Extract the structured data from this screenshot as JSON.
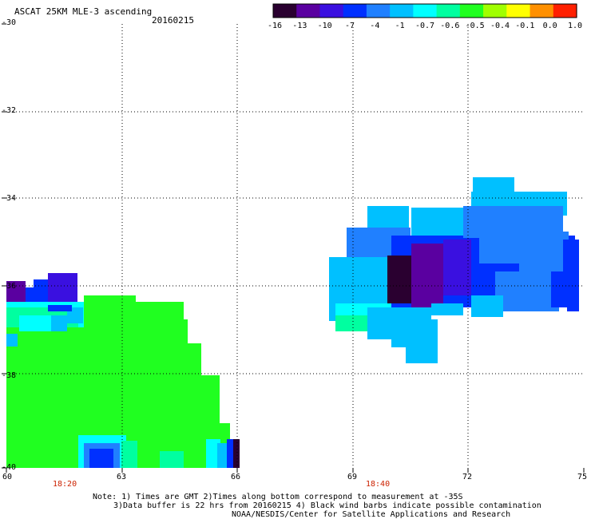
{
  "header": {
    "title": "ASCAT 25KM MLE-3 ascending",
    "date": "20160215"
  },
  "colorbar": {
    "labels": [
      "-16",
      "-13",
      "-10",
      "-7",
      "-4",
      "-1",
      "-0.7",
      "-0.6",
      "-0.5",
      "-0.4",
      "-0.1",
      "0.0",
      "1.0"
    ],
    "colors": [
      "#2a0030",
      "#5a00a0",
      "#3a10e0",
      "#0030ff",
      "#2080ff",
      "#00c0ff",
      "#00ffff",
      "#00ffa0",
      "#20ff20",
      "#a0ff00",
      "#ffff00",
      "#ff9000",
      "#ff2000"
    ]
  },
  "axes": {
    "x_ticks": [
      "60",
      "63",
      "66",
      "69",
      "72",
      "75"
    ],
    "y_ticks": [
      "-30",
      "-32",
      "-34",
      "-36",
      "-38",
      "-40"
    ]
  },
  "times": [
    "18:20",
    "18:40"
  ],
  "notes": [
    "Note: 1) Times are GMT 2)Times along bottom correspond to measurement at -35S",
    "3)Data buffer is 22 hrs from 20160215 4) Black wind barbs indicate possible contamination",
    "NOAA/NESDIS/Center for Satellite Applications and Research"
  ]
}
